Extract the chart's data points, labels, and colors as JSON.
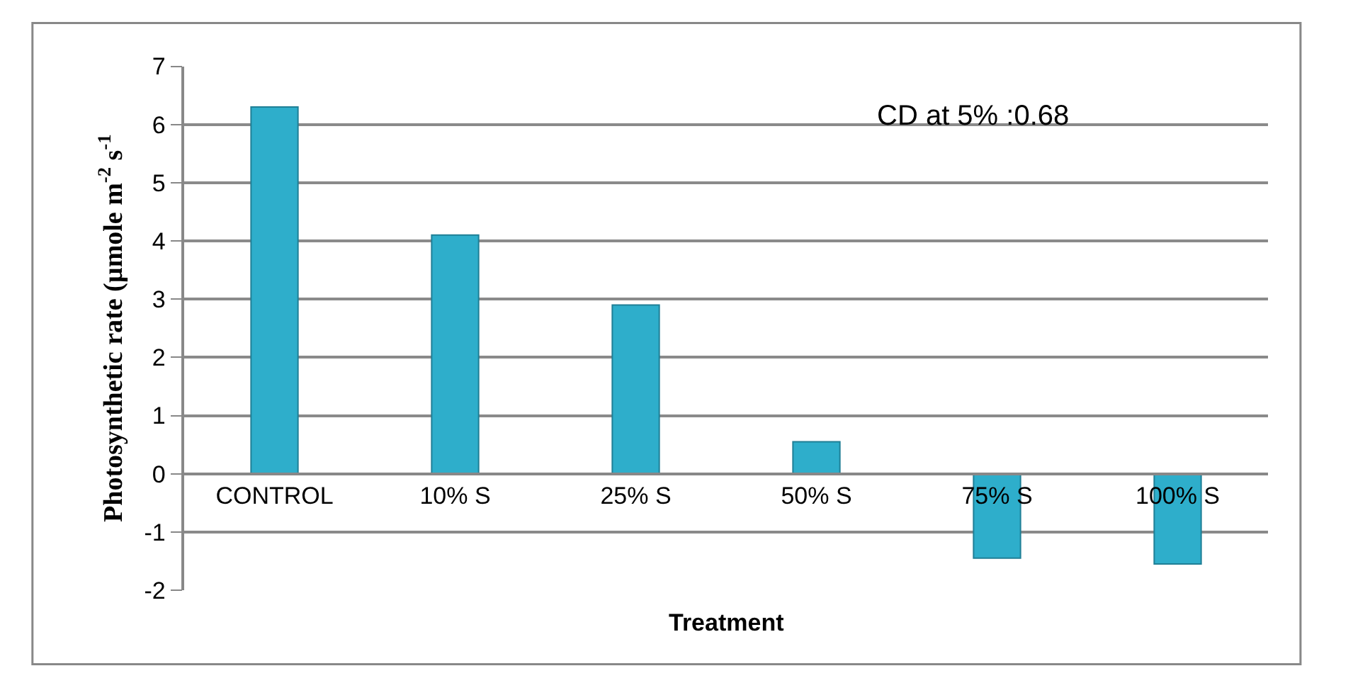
{
  "chart_data": {
    "type": "bar",
    "categories": [
      "CONTROL",
      "10% S",
      "25% S",
      "50% S",
      "75% S",
      "100% S"
    ],
    "values": [
      6.3,
      4.1,
      2.9,
      0.55,
      -1.45,
      -1.55
    ],
    "color": "#2eaecb",
    "xlabel": "Treatment",
    "ylabel": "Photosynthetic rate (µmole m$^{-2}$ s$^{-1}$",
    "annotations": [
      "CD at 5% :0.68"
    ],
    "ylim": [
      -2,
      7
    ],
    "yticks": [
      -2,
      -1,
      0,
      1,
      2,
      3,
      4,
      5,
      6,
      7
    ],
    "grid": "y"
  }
}
